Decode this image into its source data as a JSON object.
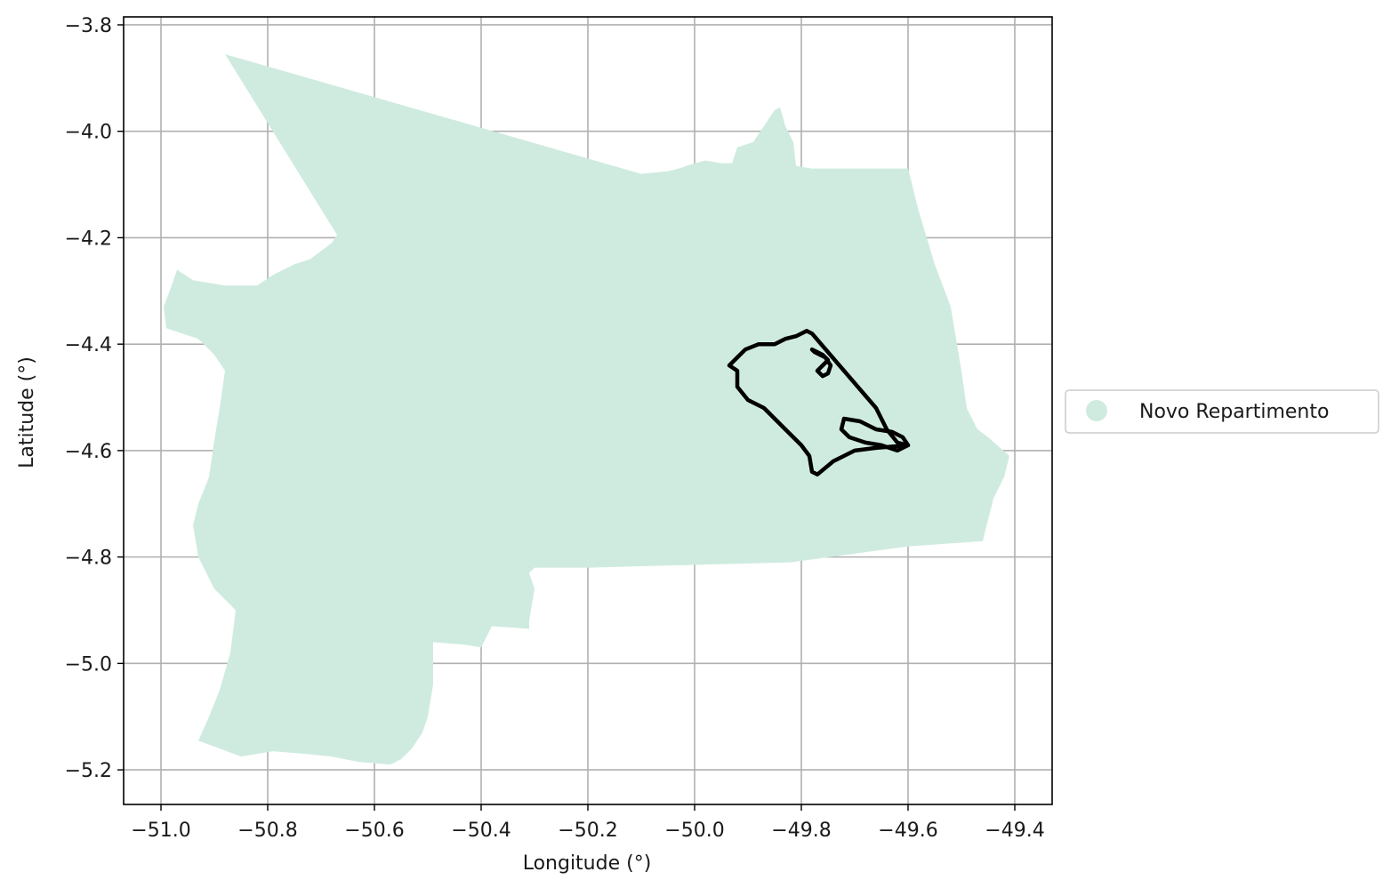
{
  "chart_data": {
    "type": "map",
    "xlabel": "Longitude (°)",
    "ylabel": "Latitude (°)",
    "xlim": [
      -51.07,
      -49.33
    ],
    "ylim": [
      -5.265,
      -3.785
    ],
    "grid": true,
    "x_ticks": [
      {
        "value": -51.0,
        "label": "−51.0"
      },
      {
        "value": -50.8,
        "label": "−50.8"
      },
      {
        "value": -50.6,
        "label": "−50.6"
      },
      {
        "value": -50.4,
        "label": "−50.4"
      },
      {
        "value": -50.2,
        "label": "−50.2"
      },
      {
        "value": -50.0,
        "label": "−50.0"
      },
      {
        "value": -49.8,
        "label": "−49.8"
      },
      {
        "value": -49.6,
        "label": "−49.6"
      },
      {
        "value": -49.4,
        "label": "−49.4"
      }
    ],
    "y_ticks": [
      {
        "value": -3.8,
        "label": "−3.8"
      },
      {
        "value": -4.0,
        "label": "−4.0"
      },
      {
        "value": -4.2,
        "label": "−4.2"
      },
      {
        "value": -4.4,
        "label": "−4.4"
      },
      {
        "value": -4.6,
        "label": "−4.6"
      },
      {
        "value": -4.8,
        "label": "−4.8"
      },
      {
        "value": -5.0,
        "label": "−5.0"
      },
      {
        "value": -5.2,
        "label": "−5.2"
      }
    ],
    "legend": {
      "placement": "right",
      "entries": [
        {
          "label": "Novo Repartimento",
          "color": "#cfebdf"
        }
      ]
    },
    "regions": [
      {
        "name": "Novo Repartimento",
        "fill": "#cfebdf",
        "boundary": [
          [
            -50.88,
            -3.855
          ],
          [
            -50.1,
            -4.08
          ],
          [
            -50.05,
            -4.075
          ],
          [
            -50.03,
            -4.07
          ],
          [
            -50.0,
            -4.06
          ],
          [
            -49.98,
            -4.055
          ],
          [
            -49.95,
            -4.06
          ],
          [
            -49.93,
            -4.06
          ],
          [
            -49.92,
            -4.03
          ],
          [
            -49.89,
            -4.02
          ],
          [
            -49.87,
            -3.99
          ],
          [
            -49.85,
            -3.96
          ],
          [
            -49.84,
            -3.955
          ],
          [
            -49.83,
            -3.99
          ],
          [
            -49.815,
            -4.02
          ],
          [
            -49.81,
            -4.065
          ],
          [
            -49.78,
            -4.07
          ],
          [
            -49.6,
            -4.07
          ],
          [
            -49.58,
            -4.15
          ],
          [
            -49.55,
            -4.25
          ],
          [
            -49.52,
            -4.33
          ],
          [
            -49.51,
            -4.39
          ],
          [
            -49.5,
            -4.45
          ],
          [
            -49.49,
            -4.52
          ],
          [
            -49.47,
            -4.56
          ],
          [
            -49.45,
            -4.575
          ],
          [
            -49.41,
            -4.61
          ],
          [
            -49.42,
            -4.65
          ],
          [
            -49.44,
            -4.69
          ],
          [
            -49.46,
            -4.77
          ],
          [
            -49.6,
            -4.78
          ],
          [
            -49.82,
            -4.81
          ],
          [
            -50.2,
            -4.82
          ],
          [
            -50.3,
            -4.82
          ],
          [
            -50.31,
            -4.83
          ],
          [
            -50.3,
            -4.86
          ],
          [
            -50.31,
            -4.92
          ],
          [
            -50.31,
            -4.935
          ],
          [
            -50.38,
            -4.93
          ],
          [
            -50.4,
            -4.97
          ],
          [
            -50.43,
            -4.965
          ],
          [
            -50.49,
            -4.96
          ],
          [
            -50.49,
            -5.04
          ],
          [
            -50.5,
            -5.1
          ],
          [
            -50.51,
            -5.13
          ],
          [
            -50.53,
            -5.16
          ],
          [
            -50.55,
            -5.18
          ],
          [
            -50.57,
            -5.19
          ],
          [
            -50.63,
            -5.185
          ],
          [
            -50.68,
            -5.175
          ],
          [
            -50.73,
            -5.17
          ],
          [
            -50.79,
            -5.165
          ],
          [
            -50.85,
            -5.175
          ],
          [
            -50.89,
            -5.16
          ],
          [
            -50.93,
            -5.145
          ],
          [
            -50.91,
            -5.1
          ],
          [
            -50.89,
            -5.05
          ],
          [
            -50.87,
            -4.98
          ],
          [
            -50.86,
            -4.9
          ],
          [
            -50.9,
            -4.86
          ],
          [
            -50.93,
            -4.8
          ],
          [
            -50.94,
            -4.74
          ],
          [
            -50.93,
            -4.7
          ],
          [
            -50.91,
            -4.65
          ],
          [
            -50.9,
            -4.58
          ],
          [
            -50.89,
            -4.52
          ],
          [
            -50.88,
            -4.45
          ],
          [
            -50.9,
            -4.42
          ],
          [
            -50.93,
            -4.39
          ],
          [
            -50.96,
            -4.38
          ],
          [
            -50.99,
            -4.37
          ],
          [
            -50.995,
            -4.33
          ],
          [
            -50.98,
            -4.29
          ],
          [
            -50.97,
            -4.26
          ],
          [
            -50.94,
            -4.28
          ],
          [
            -50.88,
            -4.29
          ],
          [
            -50.82,
            -4.29
          ],
          [
            -50.79,
            -4.27
          ],
          [
            -50.75,
            -4.25
          ],
          [
            -50.72,
            -4.24
          ],
          [
            -50.68,
            -4.21
          ],
          [
            -50.67,
            -4.195
          ]
        ]
      }
    ],
    "overlay_paths": [
      {
        "name": "outline",
        "stroke": "#000000",
        "points": [
          [
            -49.78,
            -4.38
          ],
          [
            -49.72,
            -4.45
          ],
          [
            -49.66,
            -4.52
          ],
          [
            -49.64,
            -4.56
          ],
          [
            -49.62,
            -4.585
          ],
          [
            -49.6,
            -4.59
          ],
          [
            -49.66,
            -4.595
          ],
          [
            -49.7,
            -4.6
          ],
          [
            -49.74,
            -4.62
          ],
          [
            -49.77,
            -4.645
          ],
          [
            -49.78,
            -4.64
          ],
          [
            -49.785,
            -4.61
          ],
          [
            -49.8,
            -4.59
          ],
          [
            -49.83,
            -4.56
          ],
          [
            -49.85,
            -4.54
          ],
          [
            -49.87,
            -4.52
          ],
          [
            -49.9,
            -4.505
          ],
          [
            -49.92,
            -4.48
          ],
          [
            -49.92,
            -4.45
          ],
          [
            -49.935,
            -4.44
          ],
          [
            -49.92,
            -4.425
          ],
          [
            -49.905,
            -4.41
          ],
          [
            -49.88,
            -4.4
          ],
          [
            -49.85,
            -4.4
          ],
          [
            -49.83,
            -4.39
          ],
          [
            -49.81,
            -4.385
          ],
          [
            -49.79,
            -4.375
          ],
          [
            -49.78,
            -4.38
          ]
        ]
      },
      {
        "name": "cluster-north",
        "stroke": "#000000",
        "points": [
          [
            -49.78,
            -4.41
          ],
          [
            -49.76,
            -4.42
          ],
          [
            -49.75,
            -4.43
          ],
          [
            -49.76,
            -4.44
          ],
          [
            -49.77,
            -4.45
          ],
          [
            -49.76,
            -4.46
          ],
          [
            -49.75,
            -4.455
          ],
          [
            -49.745,
            -4.44
          ],
          [
            -49.755,
            -4.425
          ],
          [
            -49.775,
            -4.415
          ]
        ]
      },
      {
        "name": "cluster-south",
        "stroke": "#000000",
        "points": [
          [
            -49.72,
            -4.54
          ],
          [
            -49.69,
            -4.545
          ],
          [
            -49.66,
            -4.56
          ],
          [
            -49.63,
            -4.565
          ],
          [
            -49.61,
            -4.575
          ],
          [
            -49.6,
            -4.59
          ],
          [
            -49.62,
            -4.6
          ],
          [
            -49.65,
            -4.59
          ],
          [
            -49.68,
            -4.585
          ],
          [
            -49.71,
            -4.575
          ],
          [
            -49.725,
            -4.56
          ],
          [
            -49.72,
            -4.54
          ]
        ]
      }
    ]
  }
}
